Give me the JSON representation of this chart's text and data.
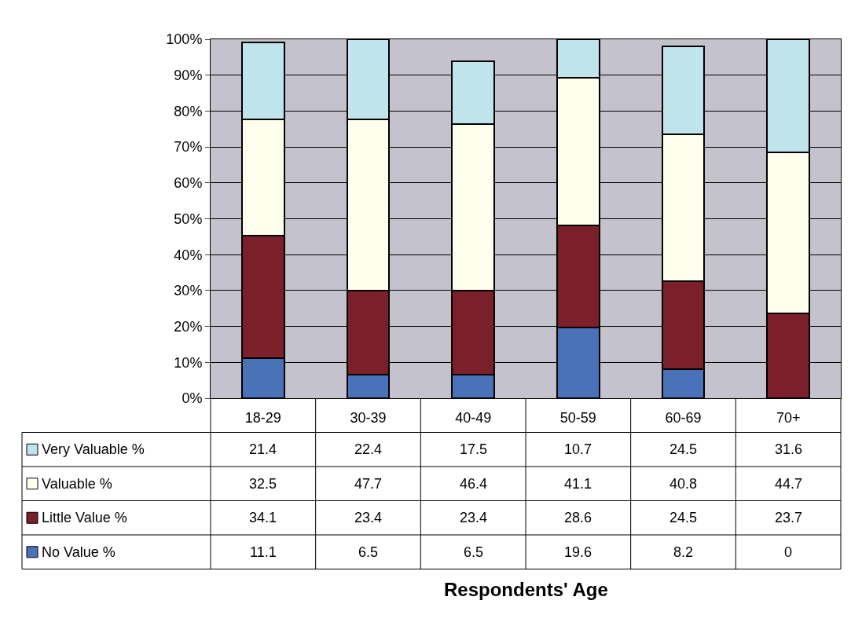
{
  "chart_data": {
    "type": "bar",
    "stacked": true,
    "annotations": [
      "Respondents' Age"
    ],
    "legend": "bottom left",
    "categories": [
      "18-29",
      "30-39",
      "40-49",
      "50-59",
      "60-69",
      "70+"
    ],
    "series": [
      {
        "name": "No Value %",
        "color": "#4a72b8",
        "values": [
          11.1,
          6.5,
          6.5,
          19.6,
          8.2,
          0
        ]
      },
      {
        "name": "Little Value %",
        "color": "#7b1f2a",
        "values": [
          34.1,
          23.4,
          23.4,
          28.6,
          24.5,
          23.7
        ]
      },
      {
        "name": "Valuable %",
        "color": "#ffffee",
        "values": [
          32.5,
          47.7,
          46.4,
          41.1,
          40.8,
          44.7
        ]
      },
      {
        "name": "Very Valuable %",
        "color": "#bfe4ec",
        "values": [
          21.4,
          22.4,
          17.5,
          10.7,
          24.5,
          31.6
        ]
      }
    ],
    "ylim": [
      0,
      100
    ],
    "yticks": [
      {
        "value": 0,
        "label": "0%"
      },
      {
        "value": 10,
        "label": "10%"
      },
      {
        "value": 20,
        "label": "20%"
      },
      {
        "value": 30,
        "label": "30%"
      },
      {
        "value": 40,
        "label": "40%"
      },
      {
        "value": 50,
        "label": "50%"
      },
      {
        "value": 60,
        "label": "60%"
      },
      {
        "value": 70,
        "label": "70%"
      },
      {
        "value": 80,
        "label": "80%"
      },
      {
        "value": 90,
        "label": "90%"
      },
      {
        "value": 100,
        "label": "100%"
      }
    ],
    "grid": "y",
    "data_labels": true
  }
}
